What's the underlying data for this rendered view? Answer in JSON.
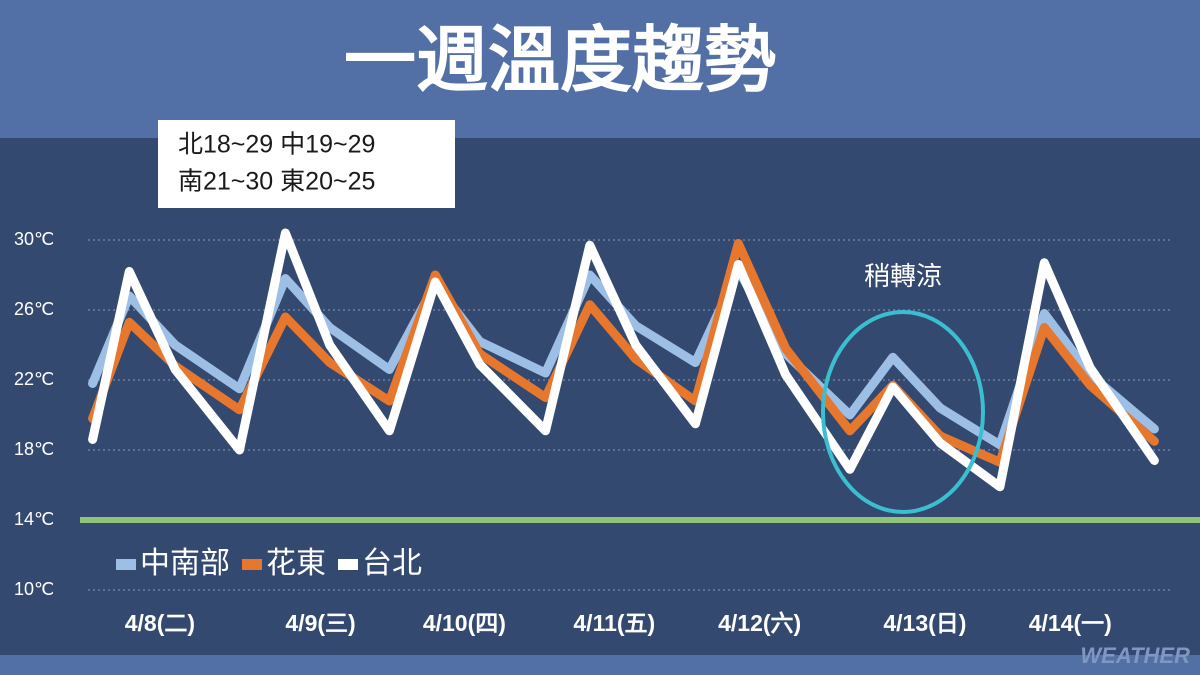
{
  "chart_data": {
    "type": "line",
    "title": "一週溫度趨勢",
    "info_box": [
      "北18~29 中19~29",
      "南21~30 東20~25"
    ],
    "annotation": "稍轉涼",
    "watermark": "WEATHER",
    "x": [
      0.03,
      0.27,
      0.57,
      0.99,
      1.29,
      1.58,
      1.97,
      2.27,
      2.56,
      2.99,
      3.28,
      3.58,
      3.97,
      4.25,
      4.56,
      4.98,
      5.26,
      5.57,
      5.96,
      6.25,
      6.55,
      6.97
    ],
    "xlim": [
      0,
      7
    ],
    "xticks": [
      {
        "value": 0.47,
        "label": "4/8(二)"
      },
      {
        "value": 1.52,
        "label": "4/9(三)"
      },
      {
        "value": 2.46,
        "label": "4/10(四)"
      },
      {
        "value": 3.44,
        "label": "4/11(五)"
      },
      {
        "value": 4.39,
        "label": "4/12(六)"
      },
      {
        "value": 5.47,
        "label": "4/13(日)"
      },
      {
        "value": 6.42,
        "label": "4/14(一)"
      }
    ],
    "ylim": [
      10,
      30
    ],
    "yticks": [
      {
        "value": 10,
        "label": "10℃"
      },
      {
        "value": 14,
        "label": "14℃"
      },
      {
        "value": 18,
        "label": "18℃"
      },
      {
        "value": 22,
        "label": "22℃"
      },
      {
        "value": 26,
        "label": "26℃"
      },
      {
        "value": 30,
        "label": "30℃"
      }
    ],
    "grid": true,
    "reference_line": {
      "value": 14,
      "color": "#8fc47a"
    },
    "series": [
      {
        "name": "中南部",
        "color": "#9dbfe6",
        "values": [
          21.8,
          26.8,
          24.0,
          21.5,
          27.8,
          25.0,
          22.6,
          27.5,
          24.2,
          22.4,
          28.0,
          25.1,
          23.0,
          28.3,
          23.5,
          20.0,
          23.3,
          20.4,
          18.3,
          25.8,
          22.3,
          19.2
        ]
      },
      {
        "name": "花東",
        "color": "#e8772e",
        "values": [
          19.8,
          25.3,
          22.8,
          20.3,
          25.6,
          23.0,
          20.8,
          28.0,
          23.5,
          21.0,
          26.3,
          23.2,
          20.8,
          29.8,
          23.8,
          19.1,
          21.7,
          18.8,
          17.3,
          25.0,
          21.7,
          18.5
        ]
      },
      {
        "name": "台北",
        "color": "#ffffff",
        "values": [
          18.6,
          28.2,
          22.6,
          18.0,
          30.4,
          24.0,
          19.1,
          27.6,
          22.9,
          19.1,
          29.7,
          24.0,
          19.5,
          28.6,
          22.3,
          16.9,
          21.6,
          18.4,
          15.9,
          28.7,
          22.7,
          17.4
        ]
      }
    ]
  }
}
